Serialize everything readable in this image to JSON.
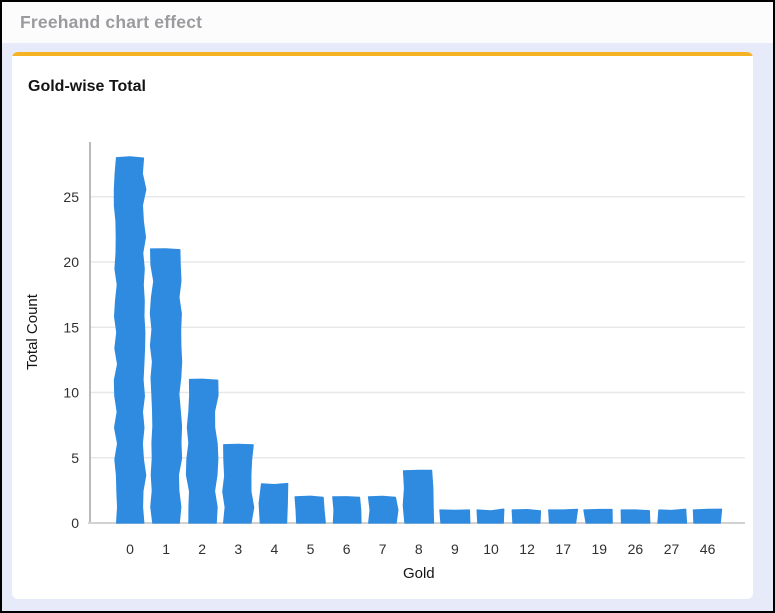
{
  "header": {
    "title": "Freehand chart effect"
  },
  "chart_data": {
    "type": "bar",
    "title": "Gold-wise Total",
    "xlabel": "Gold",
    "ylabel": "Total Count",
    "categories": [
      "0",
      "1",
      "2",
      "3",
      "4",
      "5",
      "6",
      "7",
      "8",
      "9",
      "10",
      "12",
      "17",
      "19",
      "26",
      "27",
      "46"
    ],
    "values": [
      28,
      21,
      11,
      6,
      3,
      2,
      2,
      2,
      4,
      1,
      1,
      1,
      1,
      1,
      1,
      1,
      1
    ],
    "yticks": [
      0,
      5,
      10,
      15,
      20,
      25
    ],
    "ylim": [
      0,
      29.2
    ],
    "grid": true,
    "legend": false,
    "effect": "freehand",
    "bar_color": "#2E8BE0"
  },
  "colors": {
    "accent": "#F5B222",
    "bar": "#2E8BE0",
    "canvas_bg": "#E7EBF9",
    "header_text": "#9B9B9F",
    "gridline": "#e8e8e8",
    "axis_line": "#a9a9a9",
    "baseline": "#d2d2d2",
    "outer_border": "#000000"
  }
}
